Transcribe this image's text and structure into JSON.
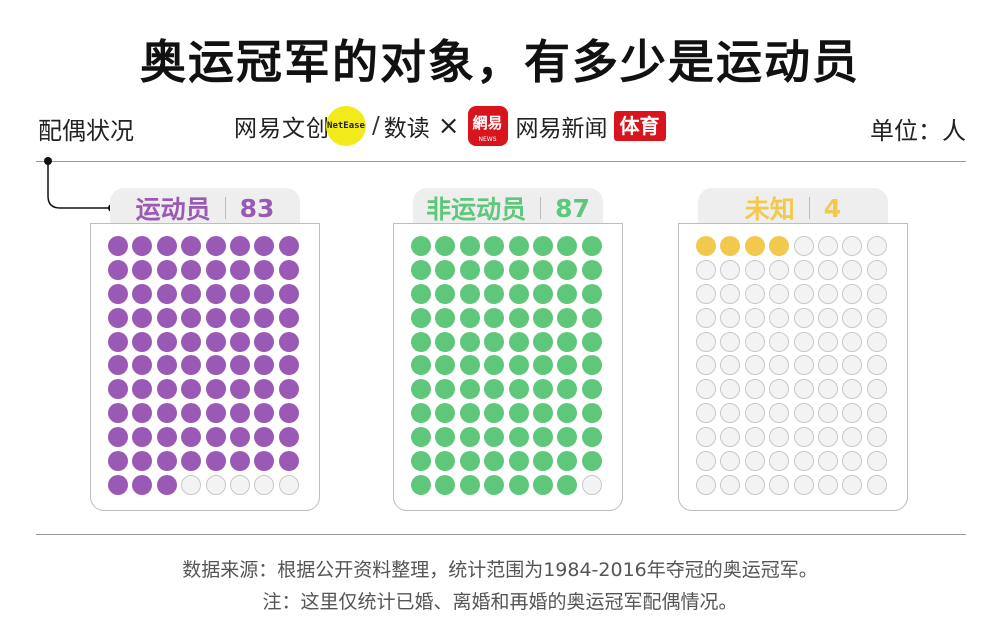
{
  "title": "奥运冠军的对象，有多少是运动员",
  "left_label": "配偶状况",
  "unit_label": "单位：人",
  "logos": {
    "brand1": "网易文创",
    "brand1_badge": "NetEase",
    "brand2": "数读",
    "times": "×",
    "netease_mark": "網易",
    "netease_mark_sub": "NEWS",
    "brand3": "网易新闻",
    "sports_tag": "体育"
  },
  "chart_data": {
    "type": "waffle",
    "title": "奥运冠军的对象，有多少是运动员",
    "grid": {
      "columns": 8,
      "rows": 11
    },
    "series": [
      {
        "name": "运动员",
        "value": 83,
        "color": "#9b59b6"
      },
      {
        "name": "非运动员",
        "value": 87,
        "color": "#5ec77a"
      },
      {
        "name": "未知",
        "value": 4,
        "color": "#f2c94c"
      }
    ],
    "empty_color": "#f3f3f3"
  },
  "footer": {
    "source": "数据来源：根据公开资料整理，统计范围为1984-2016年夺冠的奥运冠军。",
    "note": "注：这里仅统计已婚、离婚和再婚的奥运冠军配偶情况。"
  }
}
